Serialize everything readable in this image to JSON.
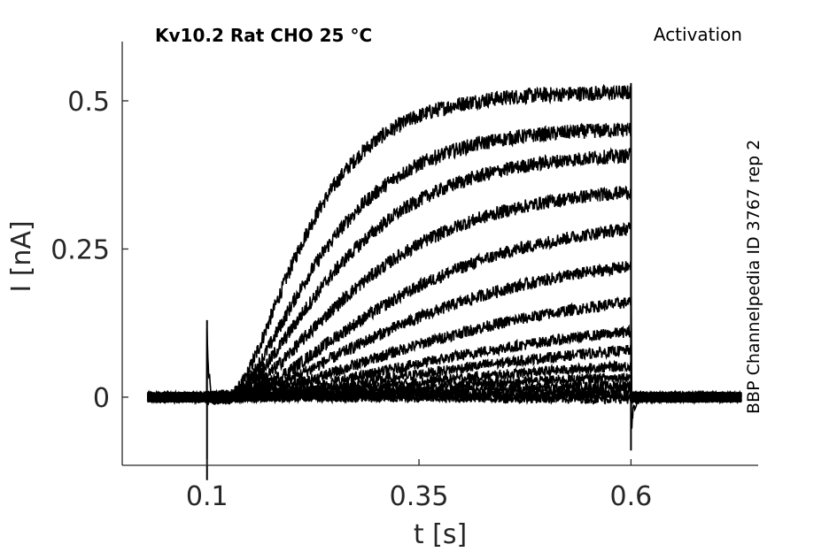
{
  "chart_data": {
    "type": "line",
    "title": "Kv10.2  Rat  CHO  25 °C",
    "protocol": "Activation",
    "side_label": "BBP Channelpedia ID 3767 rep 2",
    "xlabel": "t [s]",
    "ylabel": "I [nA]",
    "xlim": [
      0.0,
      0.75
    ],
    "ylim": [
      -0.115,
      0.6
    ],
    "x_ticks": [
      0.1,
      0.35,
      0.6
    ],
    "x_tick_labels": [
      "0.1",
      "0.35",
      "0.6"
    ],
    "y_ticks": [
      0,
      0.25,
      0.5
    ],
    "y_tick_labels": [
      "0",
      "0.25",
      "0.5"
    ],
    "grid": false,
    "line_color": "#000000",
    "pulse_start_s": 0.1,
    "pulse_end_s": 0.6,
    "sweep_start_s": 0.03,
    "sweep_end_s": 0.73,
    "series": [
      {
        "steady_state_nA": 0.515,
        "tau_s": 0.07,
        "delay_s": 0.025
      },
      {
        "steady_state_nA": 0.455,
        "tau_s": 0.085,
        "delay_s": 0.025
      },
      {
        "steady_state_nA": 0.415,
        "tau_s": 0.1,
        "delay_s": 0.025
      },
      {
        "steady_state_nA": 0.36,
        "tau_s": 0.12,
        "delay_s": 0.025
      },
      {
        "steady_state_nA": 0.31,
        "tau_s": 0.15,
        "delay_s": 0.025
      },
      {
        "steady_state_nA": 0.25,
        "tau_s": 0.17,
        "delay_s": 0.025
      },
      {
        "steady_state_nA": 0.195,
        "tau_s": 0.2,
        "delay_s": 0.025
      },
      {
        "steady_state_nA": 0.145,
        "tau_s": 0.23,
        "delay_s": 0.025
      },
      {
        "steady_state_nA": 0.11,
        "tau_s": 0.25,
        "delay_s": 0.025
      },
      {
        "steady_state_nA": 0.075,
        "tau_s": 0.26,
        "delay_s": 0.025
      },
      {
        "steady_state_nA": 0.05,
        "tau_s": 0.27,
        "delay_s": 0.025
      },
      {
        "steady_state_nA": 0.03,
        "tau_s": 0.28,
        "delay_s": 0.025
      },
      {
        "steady_state_nA": 0.015,
        "tau_s": 0.29,
        "delay_s": 0.025
      },
      {
        "steady_state_nA": 0.005,
        "tau_s": 0.3,
        "delay_s": 0.025
      },
      {
        "steady_state_nA": -0.005,
        "tau_s": 0.3,
        "delay_s": 0.025
      }
    ]
  }
}
